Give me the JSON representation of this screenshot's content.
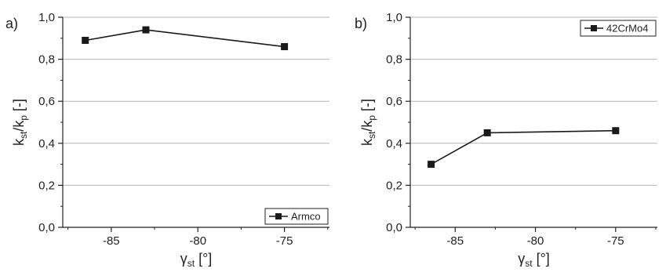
{
  "chart_data": [
    {
      "type": "line",
      "panel_label": "a)",
      "legend": {
        "label": "Armco",
        "placement": "bottom-right"
      },
      "x": [
        -86.5,
        -83,
        -75
      ],
      "series": [
        {
          "name": "Armco",
          "values": [
            0.89,
            0.94,
            0.86
          ]
        }
      ],
      "xlim": [
        -87.8,
        -72.4
      ],
      "ylim": [
        0,
        1.0
      ],
      "xticks": [
        -85,
        -80,
        -75
      ],
      "xticklabels": [
        "-85",
        "-80",
        "-75"
      ],
      "yticks": [
        0,
        0.2,
        0.4,
        0.6,
        0.8,
        1.0
      ],
      "yticklabels": [
        "0,0",
        "0,2",
        "0,4",
        "0,6",
        "0,8",
        "1,0"
      ],
      "xlabel": {
        "main": "γ",
        "sub": "st",
        "unit": " [°]"
      },
      "ylabel": {
        "k": "k",
        "st": "st",
        "slash": "/k",
        "p": "p",
        "unit": " [-]"
      },
      "grid": "horizontal",
      "marker": "square",
      "color": "#1a1a1a"
    },
    {
      "type": "line",
      "panel_label": "b)",
      "legend": {
        "label": "42CrMo4",
        "placement": "top-right"
      },
      "x": [
        -86.5,
        -83,
        -75
      ],
      "series": [
        {
          "name": "42CrMo4",
          "values": [
            0.3,
            0.45,
            0.46
          ]
        }
      ],
      "xlim": [
        -87.8,
        -72.4
      ],
      "ylim": [
        0,
        1.0
      ],
      "xticks": [
        -85,
        -80,
        -75
      ],
      "xticklabels": [
        "-85",
        "-80",
        "-75"
      ],
      "yticks": [
        0,
        0.2,
        0.4,
        0.6,
        0.8,
        1.0
      ],
      "yticklabels": [
        "0,0",
        "0,2",
        "0,4",
        "0,6",
        "0,8",
        "1,0"
      ],
      "xlabel": {
        "main": "γ",
        "sub": "st",
        "unit": " [°]"
      },
      "ylabel": {
        "k": "k",
        "st": "st",
        "slash": "/k",
        "p": "p",
        "unit": " [-]"
      },
      "grid": "horizontal",
      "marker": "square",
      "color": "#1a1a1a"
    }
  ]
}
